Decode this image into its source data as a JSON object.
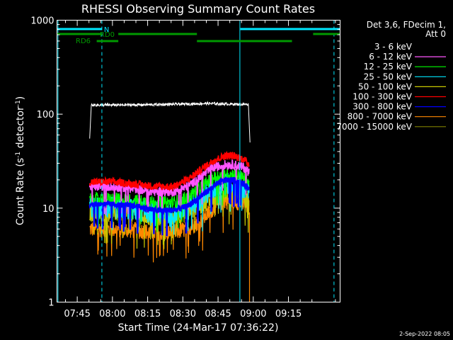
{
  "chart_data": {
    "type": "line",
    "title": "RHESSI Observing Summary Count Rates",
    "xlabel": "Start Time (24-Mar-17 07:36:22)",
    "ylabel_main": "Count Rate (s",
    "ylabel_sup1": "-1",
    "ylabel_mid": " detector",
    "ylabel_sup2": "-1",
    "ylabel_end": ")",
    "y_scale": "log",
    "ylim": [
      1,
      1000
    ],
    "xlim_minutes": [
      36.37,
      157.0
    ],
    "y_ticks": [
      {
        "value": 1,
        "label": "1"
      },
      {
        "value": 10,
        "label": "10"
      },
      {
        "value": 100,
        "label": "100"
      },
      {
        "value": 1000,
        "label": "1000"
      }
    ],
    "x_ticks": [
      {
        "minute": 45,
        "label": "07:45"
      },
      {
        "minute": 60,
        "label": "08:00"
      },
      {
        "minute": 75,
        "label": "08:15"
      },
      {
        "minute": 90,
        "label": "08:30"
      },
      {
        "minute": 105,
        "label": "08:45"
      },
      {
        "minute": 120,
        "label": "09:00"
      },
      {
        "minute": 135,
        "label": "09:15"
      }
    ],
    "legend_header": [
      "Det 3,6, FDecim 1,",
      "Att 0"
    ],
    "series": [
      {
        "name": "3 - 6 keV",
        "color": "#000000",
        "points": [
          [
            50.3,
            55
          ],
          [
            51.0,
            125
          ],
          [
            60,
            125
          ],
          [
            75,
            126
          ],
          [
            90,
            128
          ],
          [
            100,
            130
          ],
          [
            110,
            128
          ],
          [
            118,
            127
          ],
          [
            118.6,
            50
          ]
        ]
      },
      {
        "name": "6 - 12 keV",
        "color": "#ff55ff",
        "points": [
          [
            50.3,
            17
          ],
          [
            60,
            17
          ],
          [
            70,
            16
          ],
          [
            78,
            15
          ],
          [
            86,
            15
          ],
          [
            92,
            17
          ],
          [
            98,
            22
          ],
          [
            103,
            27
          ],
          [
            108,
            29
          ],
          [
            112,
            29
          ],
          [
            116,
            27
          ],
          [
            118.3,
            24
          ]
        ]
      },
      {
        "name": "12 - 25 keV",
        "color": "#00ff00",
        "points": [
          [
            50.3,
            12.5
          ],
          [
            60,
            12.5
          ],
          [
            70,
            12
          ],
          [
            78,
            11.5
          ],
          [
            86,
            11.5
          ],
          [
            92,
            13
          ],
          [
            98,
            17
          ],
          [
            103,
            21
          ],
          [
            108,
            23
          ],
          [
            112,
            23
          ],
          [
            116,
            21
          ],
          [
            118.3,
            19
          ]
        ]
      },
      {
        "name": "25 - 50 keV",
        "color": "#00e8ff",
        "points": [
          [
            50.3,
            10
          ],
          [
            60,
            10
          ],
          [
            70,
            9.5
          ],
          [
            78,
            9
          ],
          [
            86,
            9
          ],
          [
            92,
            10
          ],
          [
            98,
            13
          ],
          [
            103,
            16
          ],
          [
            108,
            18
          ],
          [
            112,
            18
          ],
          [
            116,
            16
          ],
          [
            118.3,
            15
          ]
        ]
      },
      {
        "name": "50 - 100 keV",
        "color": "#c8c800",
        "points": [
          [
            50.3,
            9
          ],
          [
            60,
            9
          ],
          [
            70,
            8.5
          ],
          [
            78,
            8
          ],
          [
            86,
            8
          ],
          [
            92,
            9
          ],
          [
            98,
            11
          ],
          [
            103,
            13
          ],
          [
            108,
            15
          ],
          [
            112,
            15
          ],
          [
            116,
            13
          ],
          [
            118.3,
            12
          ]
        ]
      },
      {
        "name": "100 - 300 keV",
        "color": "#ff0000",
        "points": [
          [
            50.3,
            19
          ],
          [
            60,
            19
          ],
          [
            70,
            18
          ],
          [
            78,
            17
          ],
          [
            86,
            17
          ],
          [
            92,
            20
          ],
          [
            98,
            26
          ],
          [
            103,
            32
          ],
          [
            108,
            36
          ],
          [
            112,
            36
          ],
          [
            116,
            33
          ],
          [
            118.3,
            29
          ]
        ]
      },
      {
        "name": "300 - 800 keV",
        "color": "#0000ff",
        "points": [
          [
            50.3,
            11
          ],
          [
            60,
            11
          ],
          [
            70,
            10.5
          ],
          [
            78,
            9.5
          ],
          [
            86,
            9.5
          ],
          [
            92,
            10.5
          ],
          [
            98,
            13.5
          ],
          [
            103,
            17
          ],
          [
            108,
            20
          ],
          [
            112,
            20
          ],
          [
            116,
            18
          ],
          [
            118.3,
            16
          ]
        ]
      },
      {
        "name": "800 - 7000 keV",
        "color": "#ff8800",
        "points": [
          [
            50.3,
            6
          ],
          [
            60,
            6
          ],
          [
            70,
            5.8
          ],
          [
            78,
            5.5
          ],
          [
            86,
            5.5
          ],
          [
            92,
            6
          ],
          [
            98,
            7.5
          ],
          [
            103,
            10
          ],
          [
            108,
            12
          ],
          [
            112,
            12
          ],
          [
            116,
            11
          ],
          [
            118.3,
            10
          ]
        ]
      },
      {
        "name": "7000 - 15000 keV",
        "color": "#808000",
        "points": []
      }
    ],
    "annotations": {
      "night": {
        "label": "N",
        "color": "#00e8ff",
        "segments": [
          [
            36.37,
            55.5
          ],
          [
            114.5,
            157
          ]
        ],
        "lines_solid": [
          36.8,
          114.3
        ],
        "lines_dashed": [
          55.5,
          154.4
        ]
      },
      "rd0": {
        "label": "RD0",
        "color": "#009900",
        "segments": [
          [
            36.37,
            55.5
          ],
          [
            62.5,
            96
          ],
          [
            145.5,
            157
          ]
        ]
      },
      "rd6": {
        "label": "RD6",
        "color": "#009900",
        "segments": [
          [
            53.3,
            62.5
          ],
          [
            96,
            136.5
          ]
        ]
      }
    },
    "footer_date": "2-Sep-2022 08:05"
  }
}
